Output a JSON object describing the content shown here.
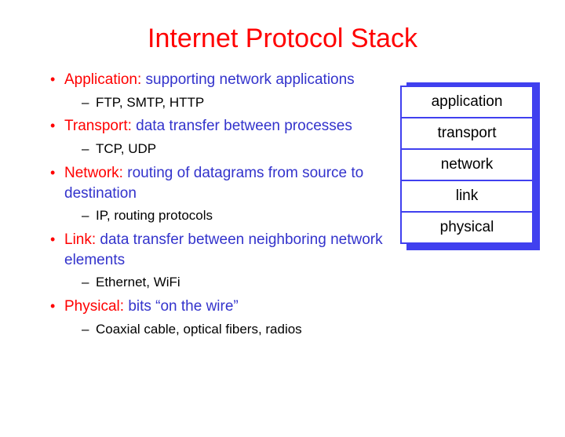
{
  "title": "Internet Protocol Stack",
  "colors": {
    "title": "#ff0000",
    "layer_name": "#ff0000",
    "layer_desc": "#3333cc",
    "sub_text": "#000000",
    "bullet": "#ff0000",
    "stack_border": "#4040ef",
    "stack_shadow": "#4040ef",
    "background": "#ffffff"
  },
  "bullets": [
    {
      "name": "Application:",
      "desc": "supporting network applications",
      "sub": "FTP, SMTP, HTTP"
    },
    {
      "name": "Transport:",
      "desc": "data transfer between processes",
      "sub": "TCP, UDP"
    },
    {
      "name": "Network:",
      "desc": "routing of datagrams from source to destination",
      "sub": "IP, routing protocols"
    },
    {
      "name": "Link:",
      "desc": "data transfer between neighboring  network elements",
      "sub": "Ethernet, WiFi"
    },
    {
      "name": "Physical:",
      "desc": "bits “on the wire”",
      "sub": "Coaxial cable, optical fibers, radios"
    }
  ],
  "stack": {
    "layers": [
      "application",
      "transport",
      "network",
      "link",
      "physical"
    ]
  }
}
